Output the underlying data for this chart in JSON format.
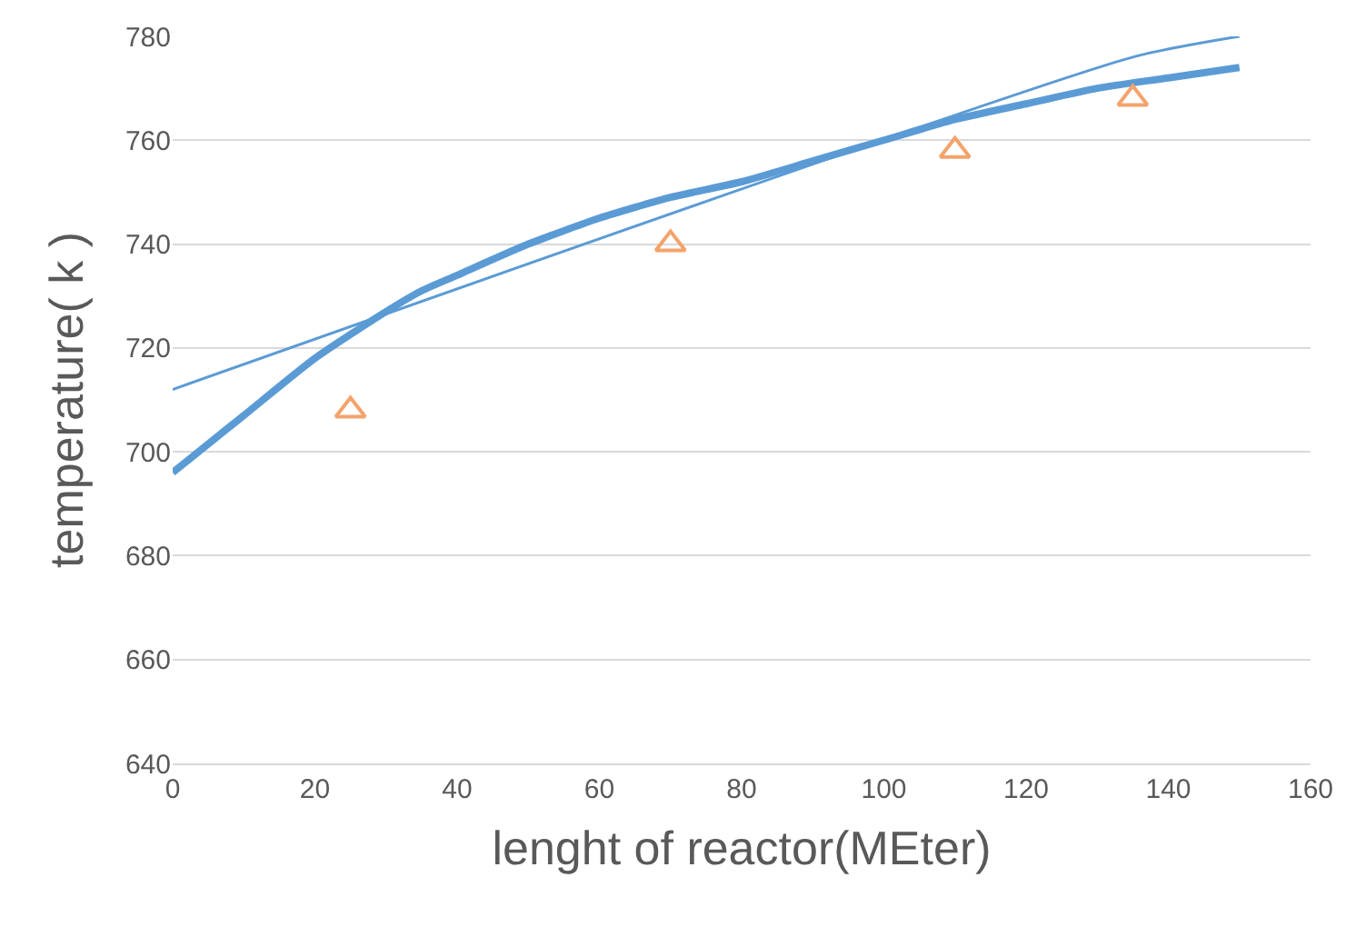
{
  "chart_data": {
    "type": "line",
    "xlabel": "lenght of reactor(MEter)",
    "ylabel": "temperature( k )",
    "xlim": [
      0,
      160
    ],
    "xticks": [
      0,
      20,
      40,
      60,
      80,
      100,
      120,
      140,
      160
    ],
    "ylim": [
      640,
      780
    ],
    "yticks": [
      640,
      660,
      680,
      700,
      720,
      740,
      760,
      780
    ],
    "grid": "y",
    "series": [
      {
        "color": "#5b9bd5",
        "x": [
          0,
          10,
          20,
          30,
          35,
          40,
          50,
          60,
          70,
          80,
          90,
          100,
          110,
          120,
          130,
          140,
          150
        ],
        "values": [
          696,
          707,
          718,
          727,
          731,
          734,
          740,
          745,
          749,
          752,
          756,
          760,
          764,
          767,
          770,
          772,
          774
        ],
        "marker": "none",
        "line_style": "solid"
      },
      {
        "color": "#5b9bd5",
        "x": [
          0,
          135,
          150
        ],
        "values": [
          712,
          776,
          780
        ],
        "marker": "none",
        "line_style": "solid"
      },
      {
        "type": "scatter",
        "color": "#f4a36c",
        "x": [
          25,
          70,
          110,
          135
        ],
        "values": [
          708,
          740,
          758,
          768
        ],
        "marker": "triangle"
      }
    ]
  }
}
